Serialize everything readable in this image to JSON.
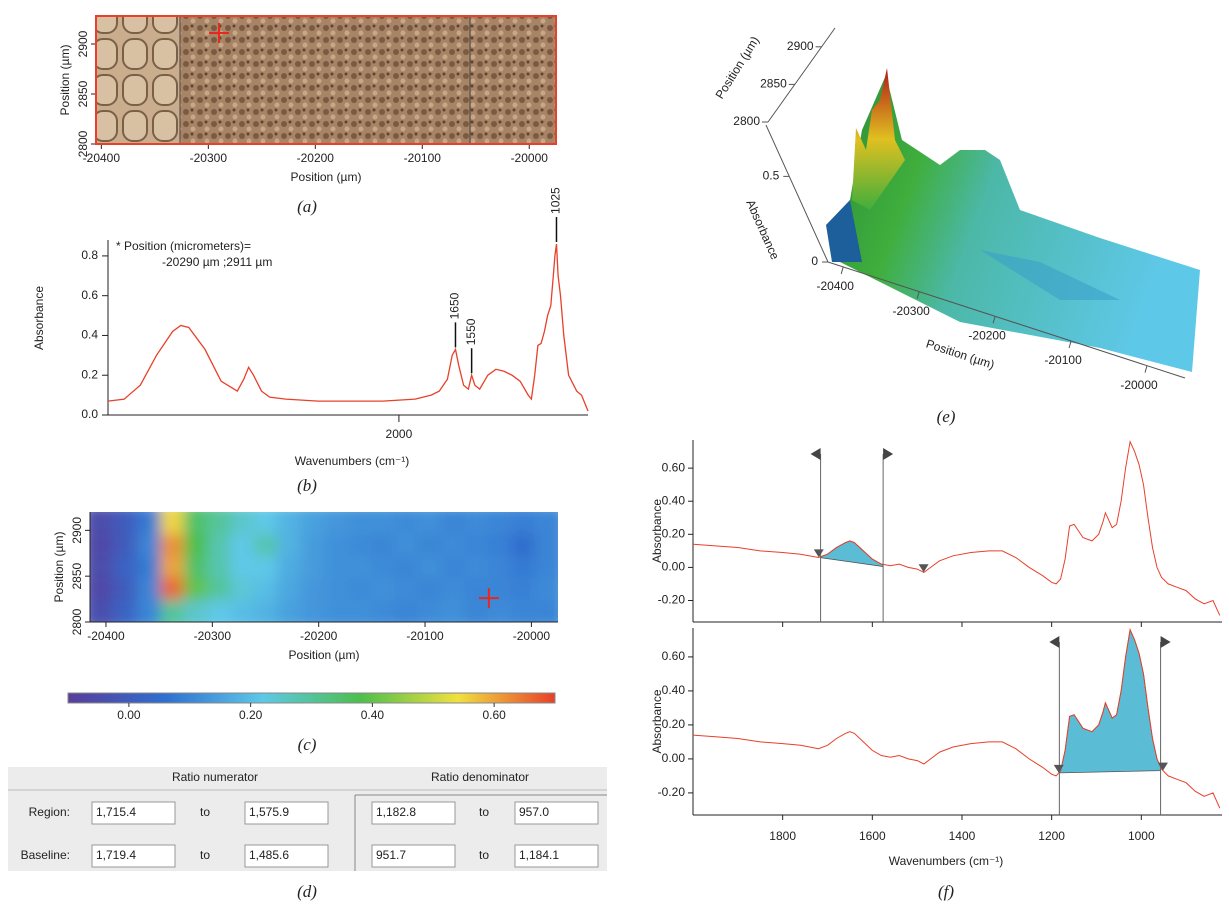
{
  "chart_data": [
    {
      "type": "image",
      "caption": "(a)",
      "xlabel": "Position (µm)",
      "ylabel": "Position (µm)",
      "xlim": [
        -20405,
        -19975
      ],
      "ylim": [
        2800,
        2928
      ],
      "xticks": [
        -20400,
        -20300,
        -20200,
        -20100,
        -20000
      ],
      "yticks": [
        2800,
        2850,
        2900
      ],
      "marker": [
        -20290,
        2911
      ],
      "marker_color": "#e8281e",
      "frame_color": "#e8402a"
    },
    {
      "type": "line",
      "caption": "(b)",
      "xlabel": "Wavenumbers (cm⁻¹)",
      "ylabel": "Absorbance",
      "annotation": [
        "* Position (micrometers)=",
        "-20290 µm ;2911 µm"
      ],
      "xlim": [
        3800,
        830
      ],
      "ylim": [
        0,
        0.88
      ],
      "xticks": [
        2000
      ],
      "yticks": [
        {
          "value": 0,
          "label": "0.0"
        },
        0.2,
        0.4,
        0.6,
        0.8
      ],
      "peaks": [
        1650,
        1550,
        1025
      ],
      "color": "#e8402a",
      "x": [
        3800,
        3700,
        3600,
        3500,
        3400,
        3350,
        3300,
        3200,
        3100,
        3000,
        2960,
        2930,
        2900,
        2850,
        2800,
        2700,
        2500,
        2300,
        2100,
        1900,
        1800,
        1750,
        1700,
        1670,
        1650,
        1630,
        1600,
        1570,
        1550,
        1530,
        1500,
        1450,
        1400,
        1350,
        1300,
        1250,
        1200,
        1180,
        1160,
        1140,
        1120,
        1100,
        1080,
        1060,
        1045,
        1035,
        1025,
        1015,
        1000,
        980,
        950,
        900,
        870,
        850,
        830
      ],
      "values": [
        0.07,
        0.08,
        0.15,
        0.3,
        0.42,
        0.45,
        0.44,
        0.33,
        0.17,
        0.12,
        0.18,
        0.24,
        0.2,
        0.12,
        0.09,
        0.08,
        0.07,
        0.07,
        0.07,
        0.08,
        0.1,
        0.12,
        0.18,
        0.3,
        0.33,
        0.25,
        0.15,
        0.13,
        0.2,
        0.15,
        0.13,
        0.2,
        0.23,
        0.22,
        0.2,
        0.17,
        0.1,
        0.08,
        0.2,
        0.35,
        0.36,
        0.42,
        0.5,
        0.55,
        0.7,
        0.8,
        0.86,
        0.7,
        0.6,
        0.4,
        0.2,
        0.12,
        0.1,
        0.06,
        0.02
      ]
    },
    {
      "type": "heatmap",
      "caption": "(c)",
      "xlabel": "Position (µm)",
      "ylabel": "Position (µm)",
      "xlim": [
        -20415,
        -19975
      ],
      "ylim": [
        2800,
        2920
      ],
      "xticks": [
        -20400,
        -20300,
        -20200,
        -20100,
        -20000
      ],
      "yticks": [
        2800,
        2850,
        2900
      ],
      "marker": [
        -20040,
        2826
      ],
      "marker_color": "#e8281e",
      "clim": [
        -0.1,
        0.7
      ],
      "colorbar_ticks": [
        {
          "value": 0,
          "label": "0.00"
        },
        {
          "value": 0.2,
          "label": "0.20"
        },
        {
          "value": 0.4,
          "label": "0.40"
        },
        {
          "value": 0.6,
          "label": "0.60"
        }
      ],
      "colormap": [
        "#5a3d9a",
        "#2f6fd0",
        "#5ec8e8",
        "#4cbf4c",
        "#f0e040",
        "#e8402a"
      ],
      "values": [
        [
          -0.05,
          0.0,
          0.08,
          0.55,
          0.35,
          0.3,
          0.25,
          0.22,
          0.18,
          0.15,
          0.13,
          0.12,
          0.12,
          0.11,
          0.12,
          0.1,
          0.11,
          0.1,
          0.09,
          0.1
        ],
        [
          -0.06,
          0.0,
          0.1,
          0.62,
          0.38,
          0.28,
          0.22,
          0.28,
          0.18,
          0.14,
          0.12,
          0.11,
          0.1,
          0.12,
          0.1,
          0.11,
          0.1,
          0.09,
          0.05,
          0.1
        ],
        [
          -0.05,
          0.02,
          0.08,
          0.6,
          0.35,
          0.28,
          0.22,
          0.22,
          0.17,
          0.14,
          0.12,
          0.12,
          0.11,
          0.1,
          0.12,
          0.1,
          0.11,
          0.1,
          0.08,
          0.1
        ],
        [
          -0.06,
          0.0,
          0.1,
          0.66,
          0.4,
          0.3,
          0.24,
          0.2,
          0.16,
          0.13,
          0.12,
          0.11,
          0.12,
          0.11,
          0.1,
          0.11,
          0.1,
          0.1,
          0.09,
          0.11
        ],
        [
          -0.04,
          0.02,
          0.1,
          0.3,
          0.25,
          0.22,
          0.2,
          0.18,
          0.15,
          0.13,
          0.12,
          0.12,
          0.11,
          0.1,
          0.11,
          0.12,
          0.1,
          0.11,
          0.1,
          0.1
        ]
      ]
    },
    {
      "type": "surface",
      "caption": "(e)",
      "xlabel": "Position (µm)",
      "ylabel": "Position (µm)",
      "zlabel": "Absorbance",
      "xlim": [
        -20420,
        -19950
      ],
      "ylim": [
        2800,
        2925
      ],
      "zlim": [
        0,
        0.8
      ],
      "xticks": [
        -20400,
        -20300,
        -20200,
        -20100,
        -20000
      ],
      "yticks": [
        2800,
        2850,
        2900
      ],
      "zticks": [
        0,
        0.5
      ]
    },
    {
      "type": "integration",
      "caption": "(f)",
      "xlabel": "Wavenumbers (cm⁻¹)",
      "ylabel": "Absorbance",
      "xlim": [
        2000,
        820
      ],
      "ylim": [
        -0.33,
        0.77
      ],
      "xticks": [
        1800,
        1600,
        1400,
        1200,
        1000
      ],
      "yticks": [
        {
          "value": -0.2,
          "label": "-0.20"
        },
        {
          "value": 0,
          "label": "0.00"
        },
        {
          "value": 0.2,
          "label": "0.20"
        },
        {
          "value": 0.4,
          "label": "0.40"
        },
        {
          "value": 0.6,
          "label": "0.60"
        }
      ],
      "color": "#e8402a",
      "fill": "#5bbcd6",
      "x": [
        2000,
        1950,
        1900,
        1850,
        1800,
        1760,
        1720,
        1700,
        1680,
        1660,
        1650,
        1640,
        1620,
        1600,
        1580,
        1560,
        1540,
        1520,
        1500,
        1485,
        1470,
        1450,
        1420,
        1380,
        1340,
        1310,
        1280,
        1250,
        1220,
        1200,
        1190,
        1180,
        1170,
        1160,
        1150,
        1130,
        1110,
        1095,
        1085,
        1080,
        1075,
        1065,
        1055,
        1045,
        1035,
        1025,
        1015,
        1005,
        995,
        985,
        975,
        965,
        955,
        940,
        920,
        900,
        880,
        860,
        840,
        825
      ],
      "values": [
        0.14,
        0.13,
        0.12,
        0.1,
        0.09,
        0.08,
        0.06,
        0.08,
        0.12,
        0.15,
        0.16,
        0.15,
        0.1,
        0.05,
        0.02,
        0.01,
        0.02,
        0.0,
        -0.01,
        -0.03,
        0.0,
        0.04,
        0.07,
        0.09,
        0.1,
        0.1,
        0.06,
        0.0,
        -0.05,
        -0.09,
        -0.1,
        -0.07,
        0.05,
        0.25,
        0.26,
        0.18,
        0.16,
        0.2,
        0.28,
        0.33,
        0.3,
        0.24,
        0.26,
        0.4,
        0.6,
        0.76,
        0.7,
        0.62,
        0.5,
        0.3,
        0.12,
        0.0,
        -0.06,
        -0.1,
        -0.12,
        -0.14,
        -0.19,
        -0.22,
        -0.2,
        -0.29
      ],
      "integrations": [
        {
          "region": [
            1715.4,
            1575.9
          ],
          "baseline": [
            1719.4,
            1485.6
          ]
        },
        {
          "region": [
            1182.8,
            957.0
          ],
          "baseline": [
            951.7,
            1184.1
          ]
        }
      ]
    }
  ],
  "ratio_table": {
    "caption": "(d)",
    "headers": [
      "Ratio numerator",
      "Ratio denominator"
    ],
    "rows": [
      {
        "label": "Region:",
        "cells": [
          "1,715.4",
          "to",
          "1,575.9",
          "1,182.8",
          "to",
          "957.0"
        ]
      },
      {
        "label": "Baseline:",
        "cells": [
          "1,719.4",
          "to",
          "1,485.6",
          "951.7",
          "to",
          "1,184.1"
        ]
      }
    ]
  }
}
